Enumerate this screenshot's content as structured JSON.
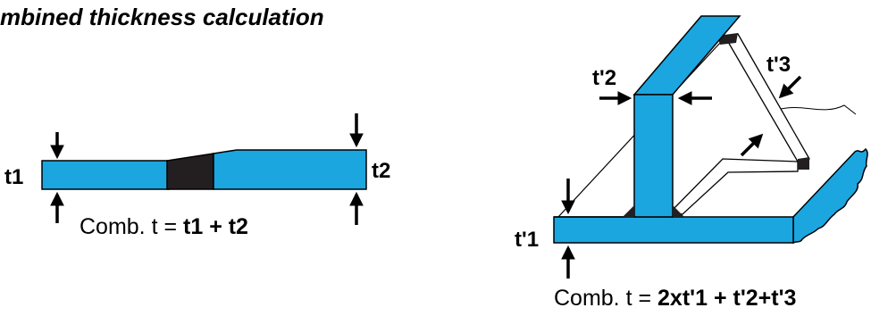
{
  "title": "mbined thickness calculation",
  "left": {
    "t1": "t1",
    "t2": "t2",
    "formula_prefix": "Comb. t = ",
    "formula_value": "t1 + t2"
  },
  "right": {
    "t1": "t'1",
    "t2": "t'2",
    "t3": "t'3",
    "formula_prefix": "Comb. t = ",
    "formula_value": "2xt'1 + t'2+t'3"
  },
  "colors": {
    "plate": "#1ba6e0",
    "weld": "#231f20",
    "outline": "#000000"
  }
}
